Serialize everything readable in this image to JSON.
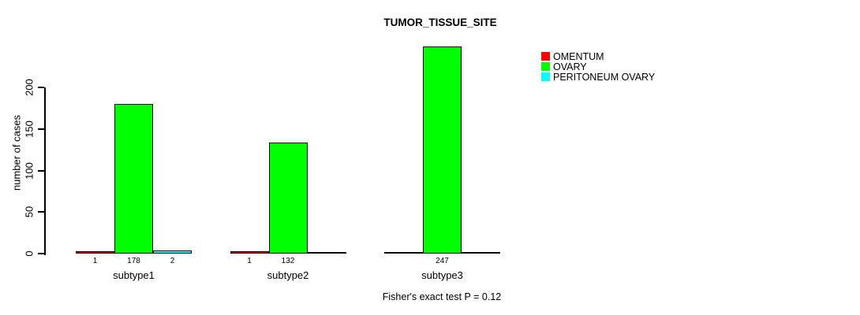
{
  "chart_data": {
    "type": "bar",
    "title": "TUMOR_TISSUE_SITE",
    "ylabel": "number of cases",
    "xlabel": "",
    "ylim": [
      0,
      200
    ],
    "yticks": [
      0,
      50,
      100,
      150,
      200
    ],
    "grid": false,
    "legend_position": "right",
    "categories": [
      "subtype1",
      "subtype2",
      "subtype3"
    ],
    "series": [
      {
        "name": "OMENTUM",
        "color": "#ff0000",
        "values": [
          1,
          1,
          0
        ]
      },
      {
        "name": "OVARY",
        "color": "#00ff00",
        "values": [
          178,
          132,
          247
        ]
      },
      {
        "name": "PERITONEUM OVARY",
        "color": "#00ffff",
        "values": [
          2,
          0,
          0
        ]
      }
    ],
    "bar_value_labels": [
      [
        "1",
        "178",
        "2"
      ],
      [
        "1",
        "132",
        ""
      ],
      [
        "",
        "247",
        ""
      ]
    ],
    "annotation": "Fisher's exact test P = 0.12",
    "colors": {
      "axis": "#000000",
      "bar_border": "#000000",
      "background": "#ffffff",
      "text": "#000000"
    }
  }
}
